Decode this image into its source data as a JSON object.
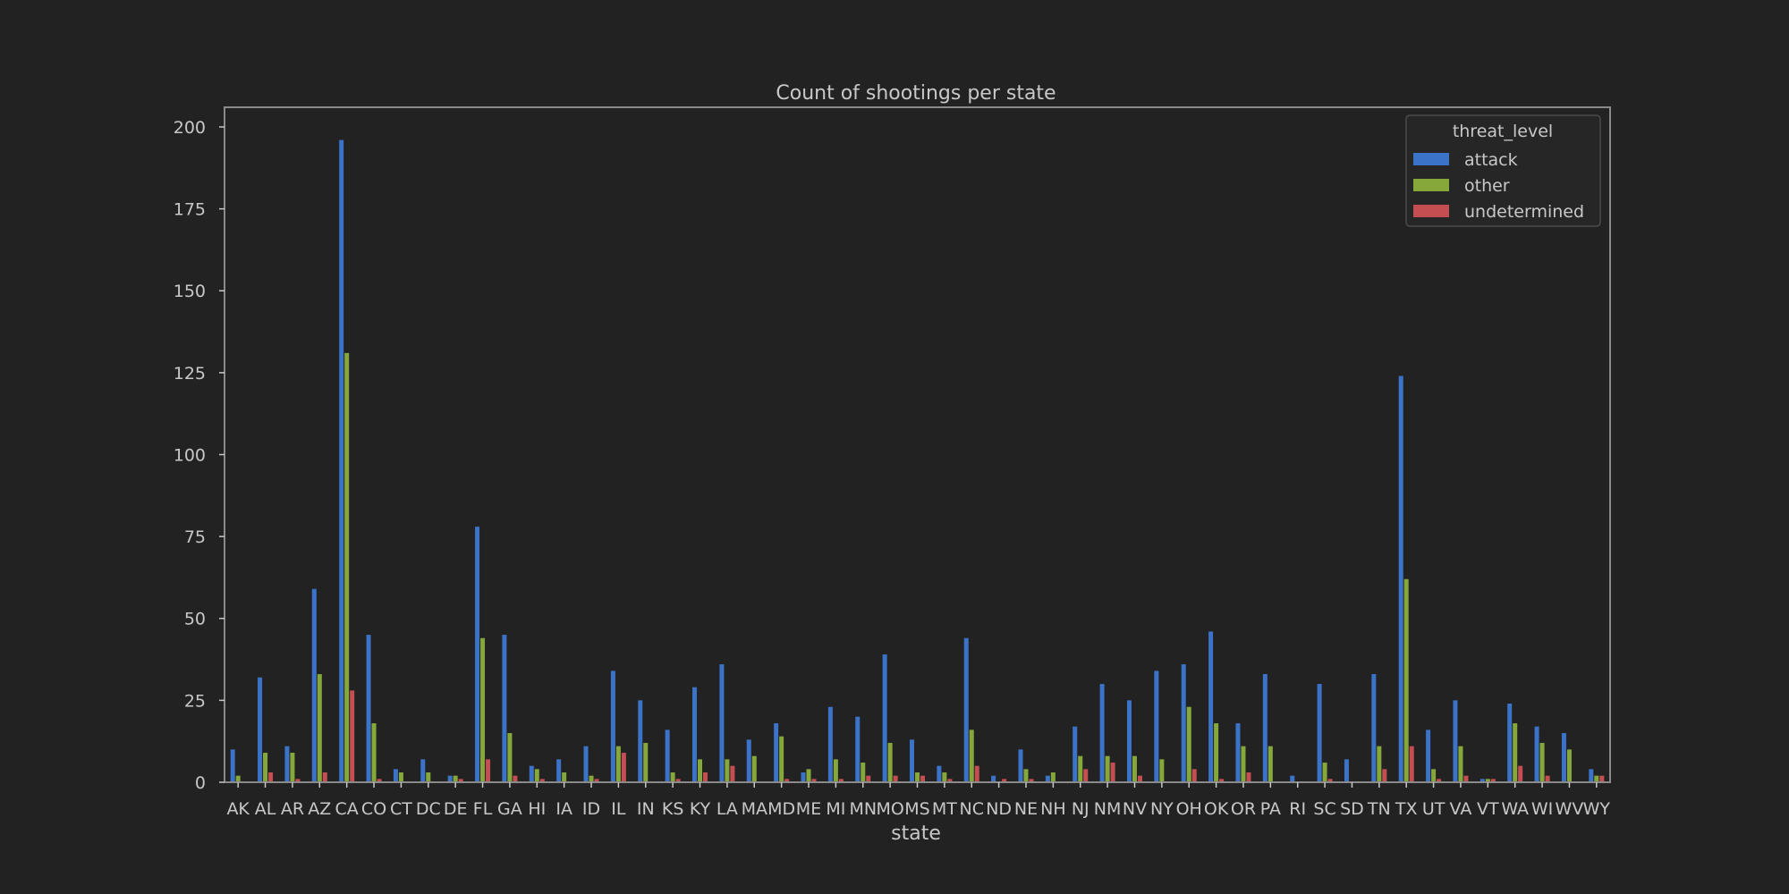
{
  "chart_data": {
    "type": "bar",
    "title": "Count of shootings per state",
    "xlabel": "state",
    "ylabel": "",
    "ylim": [
      0,
      206
    ],
    "yticks": [
      0,
      25,
      50,
      75,
      100,
      125,
      150,
      175,
      200
    ],
    "grid": false,
    "legend": {
      "title": "threat_level",
      "placement": "top-right"
    },
    "categories": [
      "AK",
      "AL",
      "AR",
      "AZ",
      "CA",
      "CO",
      "CT",
      "DC",
      "DE",
      "FL",
      "GA",
      "HI",
      "IA",
      "ID",
      "IL",
      "IN",
      "KS",
      "KY",
      "LA",
      "MA",
      "MD",
      "ME",
      "MI",
      "MN",
      "MO",
      "MS",
      "MT",
      "NC",
      "ND",
      "NE",
      "NH",
      "NJ",
      "NM",
      "NV",
      "NY",
      "OH",
      "OK",
      "OR",
      "PA",
      "RI",
      "SC",
      "SD",
      "TN",
      "TX",
      "UT",
      "VA",
      "VT",
      "WA",
      "WI",
      "WV",
      "WY"
    ],
    "series": [
      {
        "name": "attack",
        "color": "#3b73c8",
        "values": [
          10,
          32,
          11,
          59,
          196,
          45,
          4,
          7,
          2,
          78,
          45,
          5,
          7,
          11,
          34,
          25,
          16,
          29,
          36,
          13,
          18,
          3,
          23,
          20,
          39,
          13,
          5,
          44,
          2,
          10,
          2,
          17,
          30,
          25,
          34,
          36,
          46,
          18,
          33,
          2,
          30,
          7,
          33,
          124,
          16,
          25,
          1,
          24,
          17,
          15,
          4
        ]
      },
      {
        "name": "other",
        "color": "#86a83a",
        "values": [
          2,
          9,
          9,
          33,
          131,
          18,
          3,
          3,
          2,
          44,
          15,
          4,
          3,
          2,
          11,
          12,
          3,
          7,
          7,
          8,
          14,
          4,
          7,
          6,
          12,
          3,
          3,
          16,
          0,
          4,
          3,
          8,
          8,
          8,
          7,
          23,
          18,
          11,
          11,
          0,
          6,
          0,
          11,
          62,
          4,
          11,
          1,
          18,
          12,
          10,
          2
        ]
      },
      {
        "name": "undetermined",
        "color": "#c44e52",
        "values": [
          0,
          3,
          1,
          3,
          28,
          1,
          0,
          0,
          1,
          7,
          2,
          1,
          0,
          1,
          9,
          0,
          1,
          3,
          5,
          0,
          1,
          1,
          1,
          2,
          2,
          2,
          1,
          5,
          1,
          1,
          0,
          4,
          6,
          2,
          0,
          4,
          1,
          3,
          0,
          0,
          1,
          0,
          4,
          11,
          1,
          2,
          1,
          5,
          2,
          0,
          2
        ]
      }
    ]
  }
}
